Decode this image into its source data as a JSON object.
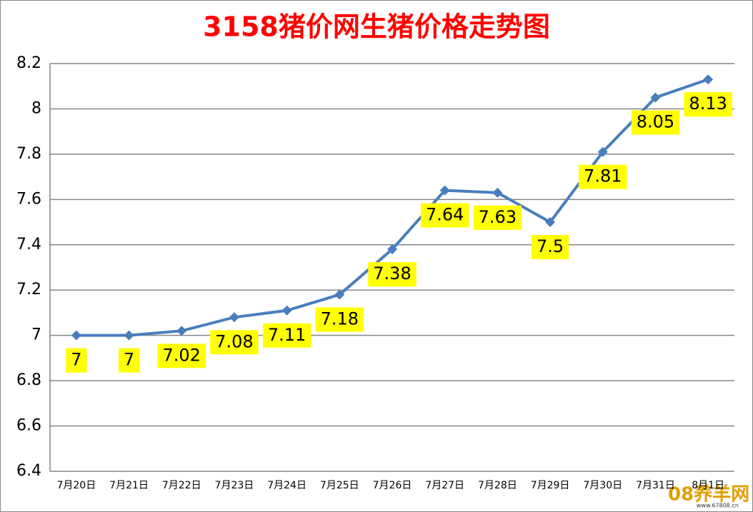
{
  "chart_data": {
    "type": "line",
    "title": "3158猪价网生猪价格走势图",
    "categories": [
      "7月20日",
      "7月21日",
      "7月22日",
      "7月23日",
      "7月24日",
      "7月25日",
      "7月26日",
      "7月27日",
      "7月28日",
      "7月29日",
      "7月30日",
      "7月31日",
      "8月1日"
    ],
    "values": [
      7,
      7,
      7.02,
      7.08,
      7.11,
      7.18,
      7.38,
      7.64,
      7.63,
      7.5,
      7.81,
      8.05,
      8.13
    ],
    "color": "#4a7ebb",
    "label_color": "#ffff00",
    "ylim": [
      6.4,
      8.2
    ],
    "yticks": [
      6.4,
      6.6,
      6.8,
      7,
      7.2,
      7.4,
      7.6,
      7.8,
      8,
      8.2
    ],
    "grid": true,
    "watermark": "08养羊网",
    "watermark_url": "www.67808.cn"
  }
}
